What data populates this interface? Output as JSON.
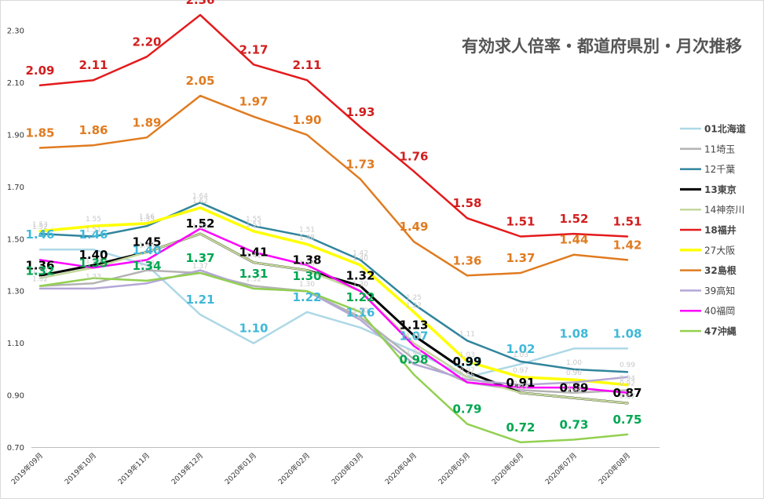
{
  "chart_data": {
    "type": "line",
    "title": "有効求人倍率・都道府県別・月次推移",
    "xlabel": "",
    "ylabel": "",
    "ylim": [
      0.7,
      2.36
    ],
    "yticks": [
      "0.70",
      "0.90",
      "1.10",
      "1.30",
      "1.50",
      "1.70",
      "1.90",
      "2.10",
      "2.30"
    ],
    "categories": [
      "2019年09月",
      "2019年10月",
      "2019年11月",
      "2019年12月",
      "2020年01月",
      "2020年02月",
      "2020年03月",
      "2020年04月",
      "2020年05月",
      "2020年06月",
      "2020年07月",
      "2020年08月"
    ],
    "grid": false,
    "legend_position": "right",
    "series": [
      {
        "name": "01北海道",
        "color": "#add8e6",
        "width": 2.5,
        "bold": true,
        "legend_color": "#1fa3c9",
        "label_color": "#3fb8d8",
        "labels": "all",
        "values": [
          1.46,
          1.46,
          1.4,
          1.21,
          1.1,
          1.22,
          1.16,
          1.07,
          0.97,
          1.02,
          1.08,
          1.08
        ]
      },
      {
        "name": "11埼玉",
        "color": "#b3b3b3",
        "width": 2.5,
        "bold": false,
        "legend_color": "#444444",
        "label_color": "#c8c8c8",
        "labels": "faint",
        "values": [
          1.32,
          1.33,
          1.38,
          1.37,
          1.32,
          1.3,
          1.2,
          1.04,
          0.95,
          0.92,
          0.91,
          0.92
        ]
      },
      {
        "name": "12千葉",
        "color": "#31859c",
        "width": 2.5,
        "bold": false,
        "legend_color": "#444444",
        "label_color": "#c8c8c8",
        "labels": "faint",
        "values": [
          1.52,
          1.51,
          1.55,
          1.64,
          1.55,
          1.51,
          1.42,
          1.25,
          1.11,
          1.03,
          1.0,
          0.99
        ]
      },
      {
        "name": "13東京",
        "color": "#000000",
        "width": 3,
        "bold": true,
        "legend_color": "#000000",
        "label_color": "#000000",
        "labels": "all",
        "values": [
          1.36,
          1.4,
          1.45,
          1.52,
          1.41,
          1.38,
          1.32,
          1.13,
          0.99,
          0.91,
          0.89,
          0.87
        ]
      },
      {
        "name": "14神奈川",
        "color": "#c4d79b",
        "width": 2.5,
        "bold": false,
        "legend_color": "#444444",
        "label_color": "#c8c8c8",
        "labels": "faint",
        "values": [
          1.35,
          1.39,
          1.45,
          1.52,
          1.41,
          1.38,
          1.3,
          1.1,
          0.97,
          0.91,
          0.89,
          0.87
        ]
      },
      {
        "name": "18福井",
        "color": "#e41a1c",
        "width": 2.5,
        "bold": true,
        "legend_color": "#e41a1c",
        "label_color": "#d21e1e",
        "labels": "all",
        "values": [
          2.09,
          2.11,
          2.2,
          2.36,
          2.17,
          2.11,
          1.93,
          1.76,
          1.58,
          1.51,
          1.52,
          1.51
        ]
      },
      {
        "name": "27大阪",
        "color": "#ffff00",
        "width": 3.5,
        "bold": false,
        "legend_color": "#444444",
        "label_color": "#c8c8c8",
        "labels": "faint",
        "values": [
          1.53,
          1.55,
          1.56,
          1.62,
          1.53,
          1.48,
          1.4,
          1.22,
          1.03,
          0.97,
          0.96,
          0.94
        ]
      },
      {
        "name": "32島根",
        "color": "#e07b20",
        "width": 2.5,
        "bold": true,
        "legend_color": "#e07b20",
        "label_color": "#e07b20",
        "labels": "all",
        "values": [
          1.85,
          1.86,
          1.89,
          2.05,
          1.97,
          1.9,
          1.73,
          1.49,
          1.36,
          1.37,
          1.44,
          1.42
        ]
      },
      {
        "name": "39高知",
        "color": "#b4a7d6",
        "width": 2.5,
        "bold": false,
        "legend_color": "#444444",
        "label_color": "#c8c8c8",
        "labels": "none",
        "values": [
          1.31,
          1.31,
          1.33,
          1.38,
          1.31,
          1.3,
          1.19,
          1.02,
          0.96,
          0.94,
          0.95,
          0.97
        ]
      },
      {
        "name": "40福岡",
        "color": "#ff00ff",
        "width": 2.5,
        "bold": false,
        "legend_color": "#444444",
        "label_color": "#c8c8c8",
        "labels": "none",
        "values": [
          1.42,
          1.39,
          1.42,
          1.54,
          1.45,
          1.4,
          1.3,
          1.09,
          0.95,
          0.93,
          0.93,
          0.91
        ]
      },
      {
        "name": "47沖縄",
        "color": "#92d050",
        "width": 2.5,
        "bold": true,
        "legend_color": "#00a651",
        "label_color": "#00a651",
        "labels": "all",
        "values": [
          1.32,
          1.35,
          1.34,
          1.37,
          1.31,
          1.3,
          1.22,
          0.98,
          0.79,
          0.72,
          0.73,
          0.75
        ]
      }
    ]
  }
}
